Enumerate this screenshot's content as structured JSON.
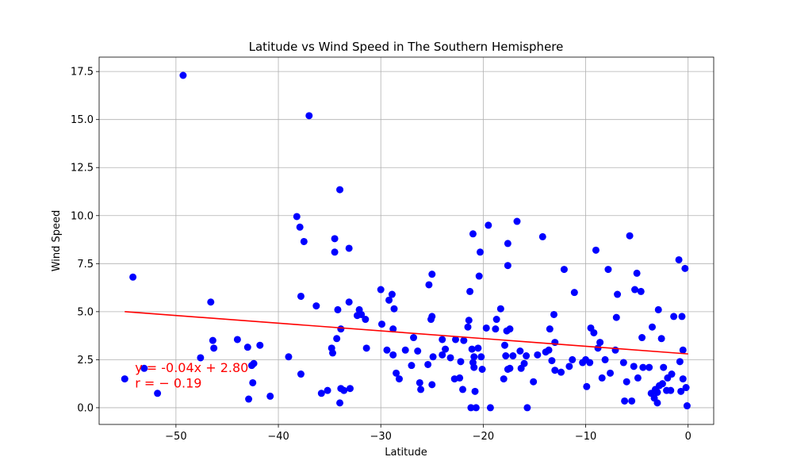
{
  "chart_data": {
    "type": "scatter",
    "title": "Latitude vs Wind Speed in The Southern Hemisphere",
    "xlabel": "Latitude",
    "ylabel": "Wind Speed",
    "xlim": [
      -57.5,
      2.5
    ],
    "ylim": [
      -0.87,
      18.25
    ],
    "xticks": [
      -50,
      -40,
      -30,
      -20,
      -10,
      0
    ],
    "xtick_labels": [
      "−50",
      "−40",
      "−30",
      "−20",
      "−10",
      "0"
    ],
    "yticks": [
      0.0,
      2.5,
      5.0,
      7.5,
      10.0,
      12.5,
      15.0,
      17.5
    ],
    "ytick_labels": [
      "0.0",
      "2.5",
      "5.0",
      "7.5",
      "10.0",
      "12.5",
      "15.0",
      "17.5"
    ],
    "grid": true,
    "point_color": "#0000ff",
    "line_color": "#ff0000",
    "regression": {
      "slope": -0.04,
      "intercept": 2.8,
      "x_range": [
        -55,
        0
      ]
    },
    "annotation": {
      "equation": "y = -0.04x + 2.80",
      "r_text": "r = − 0.19",
      "color": "#ff0000",
      "x": -54.0,
      "y_eq": 1.85,
      "y_r": 1.05
    },
    "points": [
      [
        -55.0,
        1.5
      ],
      [
        -54.2,
        6.8
      ],
      [
        -53.1,
        2.05
      ],
      [
        -51.8,
        0.75
      ],
      [
        -49.3,
        17.3
      ],
      [
        -47.6,
        2.6
      ],
      [
        -46.6,
        5.5
      ],
      [
        -46.4,
        3.5
      ],
      [
        -46.3,
        3.1
      ],
      [
        -44.0,
        3.55
      ],
      [
        -43.0,
        3.15
      ],
      [
        -42.9,
        0.45
      ],
      [
        -42.6,
        2.2
      ],
      [
        -42.5,
        1.3
      ],
      [
        -42.4,
        2.3
      ],
      [
        -41.8,
        3.25
      ],
      [
        -40.8,
        0.6
      ],
      [
        -39.0,
        2.65
      ],
      [
        -38.2,
        9.95
      ],
      [
        -37.9,
        9.4
      ],
      [
        -37.8,
        1.75
      ],
      [
        -37.8,
        5.8
      ],
      [
        -37.5,
        8.65
      ],
      [
        -37.0,
        15.2
      ],
      [
        -36.3,
        5.3
      ],
      [
        -35.8,
        0.75
      ],
      [
        -35.2,
        0.9
      ],
      [
        -34.8,
        3.1
      ],
      [
        -34.7,
        2.85
      ],
      [
        -34.5,
        8.8
      ],
      [
        -34.5,
        8.1
      ],
      [
        -34.3,
        3.6
      ],
      [
        -34.2,
        5.1
      ],
      [
        -34.0,
        11.35
      ],
      [
        -34.0,
        0.25
      ],
      [
        -33.9,
        4.1
      ],
      [
        -33.9,
        1.0
      ],
      [
        -33.6,
        0.9
      ],
      [
        -33.1,
        5.5
      ],
      [
        -33.1,
        8.3
      ],
      [
        -33.0,
        1.0
      ],
      [
        -32.3,
        4.8
      ],
      [
        -32.1,
        5.1
      ],
      [
        -31.9,
        4.85
      ],
      [
        -31.5,
        4.6
      ],
      [
        -31.4,
        3.1
      ],
      [
        -30.0,
        6.15
      ],
      [
        -29.9,
        4.35
      ],
      [
        -29.4,
        3.0
      ],
      [
        -29.2,
        5.6
      ],
      [
        -28.9,
        5.9
      ],
      [
        -28.8,
        4.1
      ],
      [
        -28.8,
        2.75
      ],
      [
        -28.7,
        5.15
      ],
      [
        -28.5,
        1.8
      ],
      [
        -28.2,
        1.5
      ],
      [
        -27.6,
        3.0
      ],
      [
        -27.0,
        2.2
      ],
      [
        -26.8,
        3.65
      ],
      [
        -26.4,
        2.95
      ],
      [
        -26.2,
        1.3
      ],
      [
        -26.1,
        0.95
      ],
      [
        -25.4,
        2.25
      ],
      [
        -25.3,
        6.4
      ],
      [
        -25.1,
        4.6
      ],
      [
        -25.0,
        6.95
      ],
      [
        -25.0,
        4.75
      ],
      [
        -25.0,
        1.2
      ],
      [
        -24.9,
        2.65
      ],
      [
        -24.0,
        3.55
      ],
      [
        -24.0,
        2.75
      ],
      [
        -23.7,
        3.05
      ],
      [
        -23.2,
        2.6
      ],
      [
        -22.8,
        1.5
      ],
      [
        -22.7,
        3.55
      ],
      [
        -22.3,
        1.55
      ],
      [
        -22.2,
        2.4
      ],
      [
        -22.0,
        0.95
      ],
      [
        -21.9,
        3.5
      ],
      [
        -21.5,
        4.2
      ],
      [
        -21.4,
        4.55
      ],
      [
        -21.3,
        6.05
      ],
      [
        -21.2,
        0.0
      ],
      [
        -21.1,
        3.05
      ],
      [
        -21.0,
        9.05
      ],
      [
        -21.0,
        2.35
      ],
      [
        -20.9,
        2.1
      ],
      [
        -20.9,
        2.65
      ],
      [
        -20.8,
        0.85
      ],
      [
        -20.7,
        0.0
      ],
      [
        -20.5,
        3.1
      ],
      [
        -20.4,
        6.85
      ],
      [
        -20.3,
        8.1
      ],
      [
        -20.2,
        2.65
      ],
      [
        -20.1,
        2.0
      ],
      [
        -19.7,
        4.15
      ],
      [
        -19.5,
        9.5
      ],
      [
        -19.3,
        0.0
      ],
      [
        -18.8,
        4.1
      ],
      [
        -18.7,
        4.6
      ],
      [
        -18.3,
        5.15
      ],
      [
        -18.0,
        1.5
      ],
      [
        -17.9,
        3.25
      ],
      [
        -17.8,
        2.7
      ],
      [
        -17.7,
        4.0
      ],
      [
        -17.6,
        7.4
      ],
      [
        -17.6,
        8.55
      ],
      [
        -17.6,
        2.0
      ],
      [
        -17.4,
        4.1
      ],
      [
        -17.4,
        2.05
      ],
      [
        -17.1,
        2.7
      ],
      [
        -16.7,
        9.7
      ],
      [
        -16.4,
        2.95
      ],
      [
        -16.3,
        2.05
      ],
      [
        -16.0,
        2.3
      ],
      [
        -15.8,
        2.7
      ],
      [
        -15.7,
        0.0
      ],
      [
        -15.1,
        1.35
      ],
      [
        -14.7,
        2.75
      ],
      [
        -14.2,
        8.9
      ],
      [
        -13.9,
        2.9
      ],
      [
        -13.6,
        3.0
      ],
      [
        -13.5,
        4.1
      ],
      [
        -13.3,
        2.45
      ],
      [
        -13.1,
        4.85
      ],
      [
        -13.0,
        1.95
      ],
      [
        -13.0,
        3.4
      ],
      [
        -12.4,
        1.85
      ],
      [
        -12.1,
        7.2
      ],
      [
        -11.6,
        2.15
      ],
      [
        -11.3,
        2.5
      ],
      [
        -11.1,
        6.0
      ],
      [
        -10.3,
        2.35
      ],
      [
        -10.0,
        2.5
      ],
      [
        -9.9,
        1.1
      ],
      [
        -9.6,
        2.35
      ],
      [
        -9.5,
        4.15
      ],
      [
        -9.2,
        3.9
      ],
      [
        -9.0,
        8.2
      ],
      [
        -8.8,
        3.1
      ],
      [
        -8.6,
        3.4
      ],
      [
        -8.4,
        1.55
      ],
      [
        -8.1,
        2.5
      ],
      [
        -7.8,
        7.2
      ],
      [
        -7.6,
        1.8
      ],
      [
        -7.1,
        3.0
      ],
      [
        -7.0,
        4.7
      ],
      [
        -6.9,
        5.9
      ],
      [
        -6.3,
        2.35
      ],
      [
        -6.2,
        0.35
      ],
      [
        -6.0,
        1.35
      ],
      [
        -5.7,
        8.95
      ],
      [
        -5.5,
        0.35
      ],
      [
        -5.3,
        2.15
      ],
      [
        -5.2,
        6.15
      ],
      [
        -5.0,
        7.0
      ],
      [
        -4.9,
        1.55
      ],
      [
        -4.6,
        6.05
      ],
      [
        -4.5,
        3.65
      ],
      [
        -4.4,
        2.1
      ],
      [
        -3.8,
        2.1
      ],
      [
        -3.6,
        0.75
      ],
      [
        -3.5,
        4.2
      ],
      [
        -3.3,
        0.5
      ],
      [
        -3.2,
        0.95
      ],
      [
        -3.0,
        0.25
      ],
      [
        -3.0,
        0.8
      ],
      [
        -2.9,
        5.1
      ],
      [
        -2.8,
        1.15
      ],
      [
        -2.6,
        3.6
      ],
      [
        -2.5,
        1.25
      ],
      [
        -2.4,
        2.1
      ],
      [
        -2.1,
        0.9
      ],
      [
        -2.0,
        1.55
      ],
      [
        -1.7,
        0.9
      ],
      [
        -1.6,
        1.75
      ],
      [
        -1.4,
        4.75
      ],
      [
        -0.9,
        7.7
      ],
      [
        -0.8,
        2.4
      ],
      [
        -0.7,
        0.85
      ],
      [
        -0.6,
        4.75
      ],
      [
        -0.5,
        3.0
      ],
      [
        -0.5,
        1.5
      ],
      [
        -0.3,
        7.25
      ],
      [
        -0.2,
        1.05
      ],
      [
        -0.1,
        0.1
      ]
    ]
  }
}
